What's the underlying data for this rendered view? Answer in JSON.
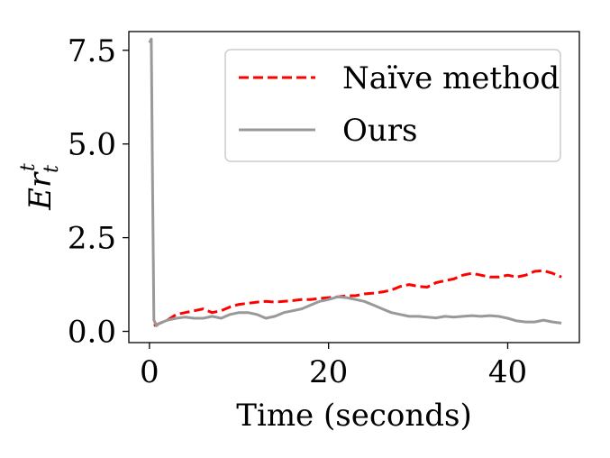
{
  "chart_data": {
    "type": "line",
    "title": "",
    "xlabel": "Time (seconds)",
    "ylabel_main": "Er",
    "ylabel_sub": "t",
    "ylabel_sup": "t",
    "xlim": [
      -2.3,
      48.0
    ],
    "ylim": [
      -0.3,
      8.0
    ],
    "xticks": [
      0,
      20,
      40
    ],
    "xtick_labels": [
      "0",
      "20",
      "40"
    ],
    "yticks": [
      0.0,
      2.5,
      5.0,
      7.5
    ],
    "ytick_labels": [
      "0.0",
      "2.5",
      "5.0",
      "7.5"
    ],
    "grid": false,
    "legend_position": "top-right",
    "series": [
      {
        "name": "Naïve method",
        "style": "dashed",
        "color": "#ff0000",
        "x": [
          0.5,
          1,
          2,
          3,
          4,
          5,
          6,
          7,
          8,
          9,
          10,
          11,
          12,
          13,
          14,
          15,
          16,
          17,
          18,
          19,
          20,
          21,
          22,
          23,
          24,
          25,
          26,
          27,
          28,
          29,
          30,
          31,
          32,
          33,
          34,
          35,
          36,
          37,
          38,
          39,
          40,
          41,
          42,
          43,
          44,
          45,
          46
        ],
        "y": [
          0.15,
          0.2,
          0.3,
          0.45,
          0.5,
          0.55,
          0.6,
          0.5,
          0.55,
          0.65,
          0.72,
          0.75,
          0.78,
          0.8,
          0.78,
          0.8,
          0.82,
          0.85,
          0.85,
          0.88,
          0.9,
          0.92,
          0.95,
          0.95,
          1.0,
          1.02,
          1.05,
          1.1,
          1.2,
          1.25,
          1.2,
          1.18,
          1.3,
          1.35,
          1.4,
          1.5,
          1.55,
          1.5,
          1.45,
          1.45,
          1.5,
          1.45,
          1.5,
          1.6,
          1.62,
          1.55,
          1.45
        ]
      },
      {
        "name": "Ours",
        "style": "solid",
        "color": "#999999",
        "x": [
          0.0,
          0.2,
          0.35,
          0.5,
          0.8,
          1,
          2,
          3,
          4,
          5,
          6,
          7,
          8,
          9,
          10,
          11,
          12,
          13,
          14,
          15,
          16,
          17,
          18,
          19,
          20,
          21,
          22,
          23,
          24,
          25,
          26,
          27,
          28,
          29,
          30,
          31,
          32,
          33,
          34,
          35,
          36,
          37,
          38,
          39,
          40,
          41,
          42,
          43,
          44,
          45,
          46
        ],
        "y": [
          7.7,
          7.8,
          4.0,
          0.3,
          0.15,
          0.2,
          0.3,
          0.35,
          0.38,
          0.35,
          0.35,
          0.4,
          0.35,
          0.45,
          0.5,
          0.5,
          0.45,
          0.35,
          0.4,
          0.5,
          0.55,
          0.6,
          0.7,
          0.8,
          0.85,
          0.92,
          0.9,
          0.85,
          0.8,
          0.7,
          0.6,
          0.5,
          0.45,
          0.4,
          0.4,
          0.38,
          0.36,
          0.4,
          0.38,
          0.4,
          0.42,
          0.4,
          0.42,
          0.4,
          0.35,
          0.28,
          0.25,
          0.25,
          0.3,
          0.25,
          0.22
        ]
      }
    ]
  }
}
